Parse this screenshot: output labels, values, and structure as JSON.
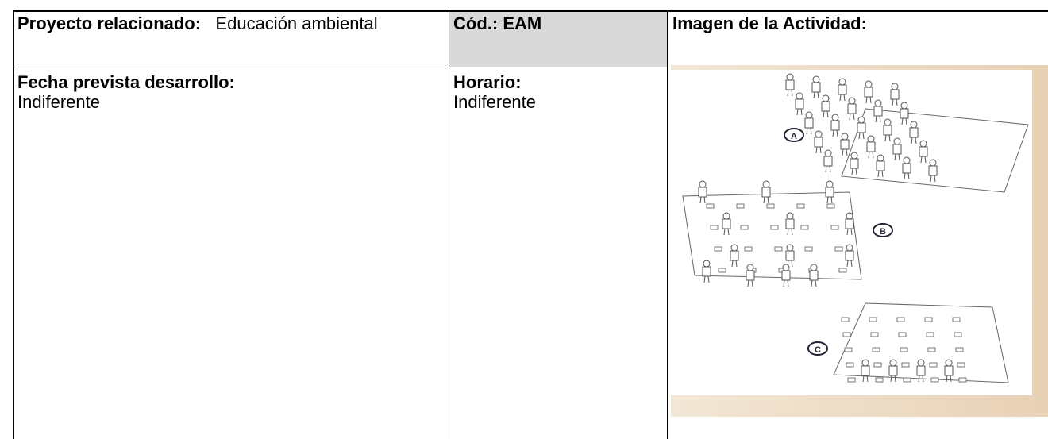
{
  "table": {
    "rows": [
      [
        {
          "label": "Proyecto relacionado:",
          "value": "Educación ambiental"
        },
        {
          "label": "Cód.: EAM"
        },
        {
          "label": "Imagen de la Actividad:"
        }
      ],
      [
        {
          "label": "Fecha prevista desarrollo:",
          "value": "Indiferente"
        },
        {
          "label": "Horario:",
          "value": "Indiferente"
        }
      ]
    ]
  },
  "image": {
    "labels": [
      "A",
      "B",
      "C"
    ]
  }
}
